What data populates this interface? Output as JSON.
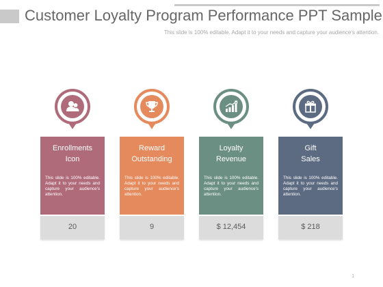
{
  "header": {
    "title": "Customer Loyalty Program Performance PPT Sample",
    "subtitle": "This slide is 100% editable. Adapt it to your needs and capture your audience's attention."
  },
  "cards": [
    {
      "title": "Enrollments\nIcon",
      "body": "This slide is 100% editable. Adapt it to your needs and capture your audience's attention.",
      "value": "20",
      "icon": "users-icon",
      "color": "#b06b7b"
    },
    {
      "title": "Reward\nOutstanding",
      "body": "This slide is 100% editable. Adapt it to your needs and capture your audience's attention.",
      "value": "9",
      "icon": "trophy-icon",
      "color": "#e58a5d"
    },
    {
      "title": "Loyalty\nRevenue",
      "body": "This slide is 100% editable. Adapt it to your needs and capture your audience's attention.",
      "value": "$ 12,454",
      "icon": "bar-chart-icon",
      "color": "#6c8f84"
    },
    {
      "title": "Gift\nSales",
      "body": "This slide is 100% editable. Adapt it to your needs and capture your audience's attention.",
      "value": "$ 218",
      "icon": "gift-icon",
      "color": "#5c6b81"
    }
  ],
  "footer": {
    "page_number": "1"
  }
}
